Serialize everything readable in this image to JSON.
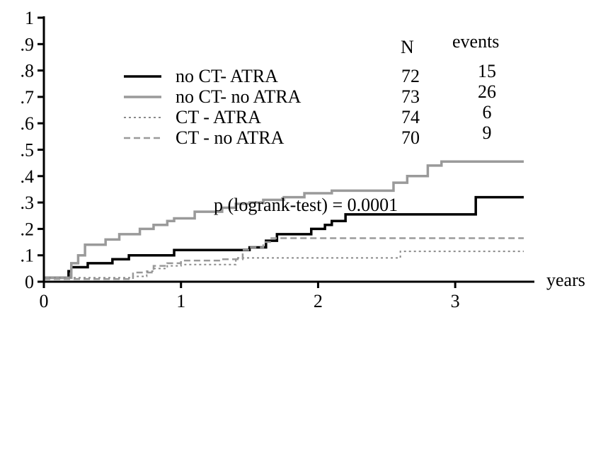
{
  "chart_data": {
    "type": "line",
    "title": "",
    "xlabel": "years",
    "ylabel": "",
    "xlim": [
      0,
      3.5
    ],
    "ylim": [
      0,
      1
    ],
    "grid": false,
    "legend_position": "top-left",
    "x_ticks": [
      {
        "value": 0,
        "label": "0"
      },
      {
        "value": 1,
        "label": "1"
      },
      {
        "value": 2,
        "label": "2"
      },
      {
        "value": 3,
        "label": "3"
      }
    ],
    "y_ticks": [
      {
        "value": 0,
        "label": "0"
      },
      {
        "value": 0.1,
        "label": ".1"
      },
      {
        "value": 0.2,
        "label": ".2"
      },
      {
        "value": 0.3,
        "label": ".3"
      },
      {
        "value": 0.4,
        "label": ".4"
      },
      {
        "value": 0.5,
        "label": ".5"
      },
      {
        "value": 0.6,
        "label": ".6"
      },
      {
        "value": 0.7,
        "label": ".7"
      },
      {
        "value": 0.8,
        "label": ".8"
      },
      {
        "value": 0.9,
        "label": ".9"
      },
      {
        "value": 1,
        "label": "1"
      }
    ],
    "table_headers": {
      "n": "N",
      "events": "events"
    },
    "annotation": "p (logrank-test) = 0.0001",
    "series": [
      {
        "name": "no CT- ATRA",
        "n": "72",
        "events": "15",
        "color": "#000000",
        "style": "solid",
        "width": 3.5,
        "steps": [
          [
            0,
            0.015
          ],
          [
            0.18,
            0.04
          ],
          [
            0.2,
            0.055
          ],
          [
            0.32,
            0.07
          ],
          [
            0.5,
            0.085
          ],
          [
            0.62,
            0.1
          ],
          [
            0.95,
            0.12
          ],
          [
            1.5,
            0.13
          ],
          [
            1.62,
            0.155
          ],
          [
            1.7,
            0.18
          ],
          [
            1.95,
            0.2
          ],
          [
            2.05,
            0.215
          ],
          [
            2.1,
            0.23
          ],
          [
            2.2,
            0.255
          ],
          [
            2.3,
            0.255
          ],
          [
            3.15,
            0.32
          ],
          [
            3.5,
            0.32
          ]
        ]
      },
      {
        "name": "no CT- no ATRA",
        "n": "73",
        "events": "26",
        "color": "#9a9a9a",
        "style": "solid",
        "width": 3.5,
        "steps": [
          [
            0,
            0.015
          ],
          [
            0.2,
            0.07
          ],
          [
            0.25,
            0.1
          ],
          [
            0.3,
            0.14
          ],
          [
            0.45,
            0.16
          ],
          [
            0.55,
            0.18
          ],
          [
            0.7,
            0.2
          ],
          [
            0.8,
            0.215
          ],
          [
            0.9,
            0.23
          ],
          [
            0.95,
            0.24
          ],
          [
            1.1,
            0.265
          ],
          [
            1.3,
            0.28
          ],
          [
            1.4,
            0.295
          ],
          [
            1.5,
            0.3
          ],
          [
            1.6,
            0.31
          ],
          [
            1.75,
            0.32
          ],
          [
            1.9,
            0.335
          ],
          [
            2.1,
            0.345
          ],
          [
            2.55,
            0.375
          ],
          [
            2.65,
            0.4
          ],
          [
            2.8,
            0.44
          ],
          [
            2.9,
            0.455
          ],
          [
            3.5,
            0.455
          ]
        ]
      },
      {
        "name": "CT -  ATRA",
        "n": "74",
        "events": "6",
        "color": "#8a8a8a",
        "style": "dotted",
        "width": 2,
        "steps": [
          [
            0,
            0.015
          ],
          [
            0.55,
            0.015
          ],
          [
            0.65,
            0.02
          ],
          [
            0.75,
            0.04
          ],
          [
            0.8,
            0.05
          ],
          [
            0.9,
            0.06
          ],
          [
            1.0,
            0.065
          ],
          [
            1.4,
            0.09
          ],
          [
            2.4,
            0.09
          ],
          [
            2.6,
            0.115
          ],
          [
            3.5,
            0.115
          ]
        ]
      },
      {
        "name": "CT -  no ATRA",
        "n": "70",
        "events": "9",
        "color": "#9a9a9a",
        "style": "dashed",
        "width": 2.5,
        "steps": [
          [
            0,
            0.01
          ],
          [
            0.6,
            0.01
          ],
          [
            0.65,
            0.035
          ],
          [
            0.8,
            0.06
          ],
          [
            0.9,
            0.07
          ],
          [
            1.0,
            0.08
          ],
          [
            1.3,
            0.085
          ],
          [
            1.45,
            0.12
          ],
          [
            1.5,
            0.13
          ],
          [
            1.6,
            0.15
          ],
          [
            1.65,
            0.165
          ],
          [
            3.5,
            0.165
          ]
        ]
      }
    ]
  }
}
